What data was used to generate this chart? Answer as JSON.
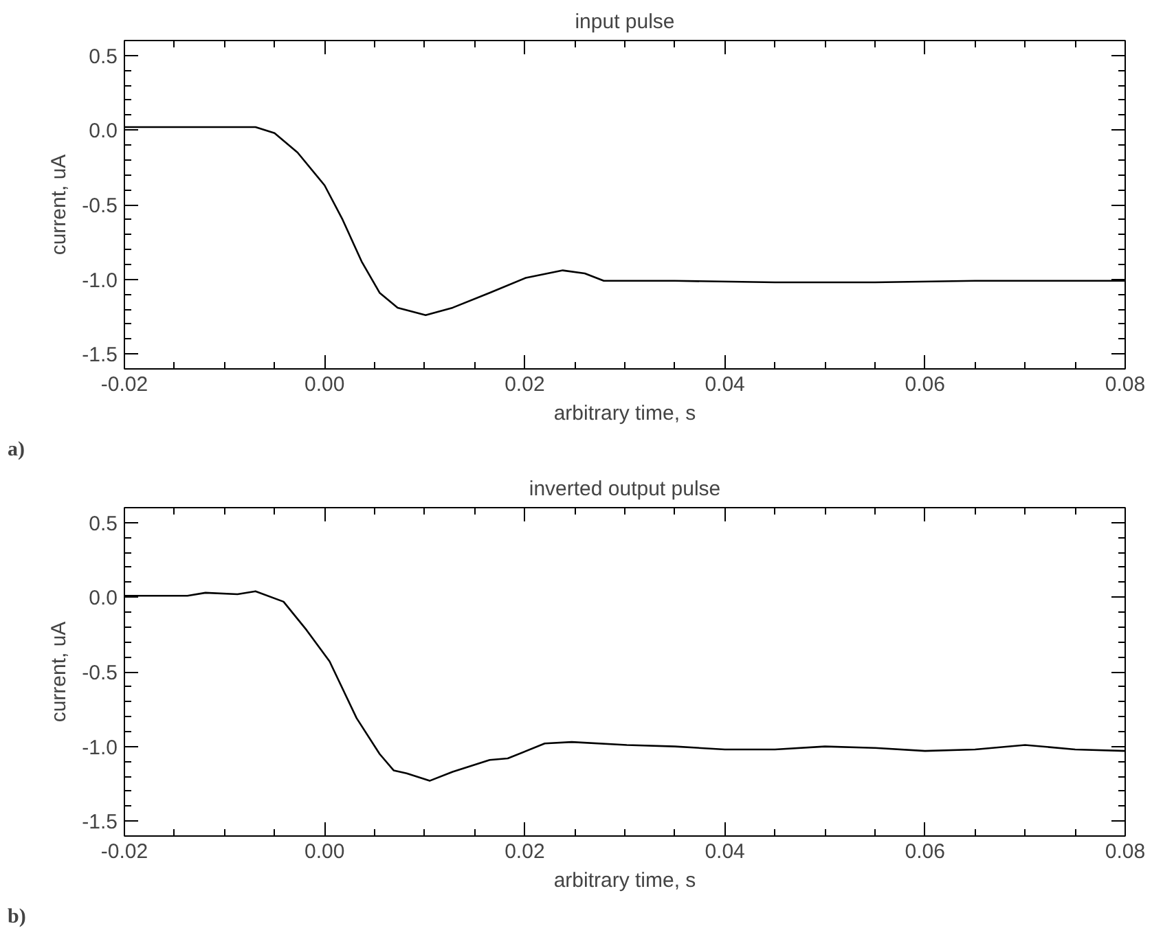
{
  "chart_data": [
    {
      "type": "line",
      "title": "input pulse",
      "xlabel": "arbitrary time, s",
      "ylabel": "current, uA",
      "annotations": [
        "a)"
      ],
      "xlim": [
        -0.02,
        0.08
      ],
      "ylim": [
        -1.6,
        0.6
      ],
      "xticks": [
        {
          "value": -0.02,
          "label": "-0.02"
        },
        {
          "value": 0,
          "label": "0.00"
        },
        {
          "value": 0.02,
          "label": "0.02"
        },
        {
          "value": 0.04,
          "label": "0.04"
        },
        {
          "value": 0.06,
          "label": "0.06"
        },
        {
          "value": 0.08,
          "label": "0.08"
        }
      ],
      "yticks": [
        {
          "value": 0.5,
          "label": "0.5"
        },
        {
          "value": 0,
          "label": "0.0"
        },
        {
          "value": -0.5,
          "label": "-0.5"
        },
        {
          "value": -1,
          "label": "-1.0"
        },
        {
          "value": -1.5,
          "label": "-1.5"
        }
      ],
      "grid": false,
      "marker": "none",
      "line_style": "solid",
      "series": [
        {
          "color": "#000000",
          "x": [
            -0.02,
            -0.015,
            -0.01,
            -0.0069,
            -0.005,
            -0.0027,
            0,
            0.0018,
            0.0037,
            0.0055,
            0.0073,
            0.0101,
            0.0128,
            0.0165,
            0.0201,
            0.0238,
            0.026,
            0.0279,
            0.035,
            0.045,
            0.055,
            0.065,
            0.08
          ],
          "values": [
            0.02,
            0.02,
            0.02,
            0.02,
            -0.02,
            -0.15,
            -0.37,
            -0.6,
            -0.88,
            -1.09,
            -1.19,
            -1.24,
            -1.19,
            -1.09,
            -0.99,
            -0.94,
            -0.96,
            -1.01,
            -1.01,
            -1.02,
            -1.02,
            -1.01,
            -1.01
          ]
        }
      ]
    },
    {
      "type": "line",
      "title": "inverted output pulse",
      "xlabel": "arbitrary time, s",
      "ylabel": "current, uA",
      "annotations": [
        "b)"
      ],
      "xlim": [
        -0.02,
        0.08
      ],
      "ylim": [
        -1.6,
        0.6
      ],
      "xticks": [
        {
          "value": -0.02,
          "label": "-0.02"
        },
        {
          "value": 0,
          "label": "0.00"
        },
        {
          "value": 0.02,
          "label": "0.02"
        },
        {
          "value": 0.04,
          "label": "0.04"
        },
        {
          "value": 0.06,
          "label": "0.06"
        },
        {
          "value": 0.08,
          "label": "0.08"
        }
      ],
      "yticks": [
        {
          "value": 0.5,
          "label": "0.5"
        },
        {
          "value": 0,
          "label": "0.0"
        },
        {
          "value": -0.5,
          "label": "-0.5"
        },
        {
          "value": -1,
          "label": "-1.0"
        },
        {
          "value": -1.5,
          "label": "-1.5"
        }
      ],
      "grid": false,
      "marker": "none",
      "line_style": "solid",
      "series": [
        {
          "color": "#000000",
          "x": [
            -0.02,
            -0.0137,
            -0.0119,
            -0.0087,
            -0.0069,
            -0.0041,
            -0.0018,
            0.0005,
            0.0032,
            0.0055,
            0.0069,
            0.0082,
            0.0105,
            0.0128,
            0.0165,
            0.0183,
            0.022,
            0.0247,
            0.0302,
            0.035,
            0.04,
            0.045,
            0.05,
            0.055,
            0.06,
            0.065,
            0.07,
            0.075,
            0.08
          ],
          "values": [
            0.01,
            0.01,
            0.03,
            0.02,
            0.04,
            -0.03,
            -0.22,
            -0.43,
            -0.81,
            -1.05,
            -1.16,
            -1.18,
            -1.23,
            -1.17,
            -1.09,
            -1.08,
            -0.98,
            -0.97,
            -0.99,
            -1.0,
            -1.02,
            -1.02,
            -1.0,
            -1.01,
            -1.03,
            -1.02,
            -0.99,
            -1.02,
            -1.03
          ]
        }
      ]
    }
  ]
}
